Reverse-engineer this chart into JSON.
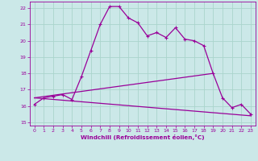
{
  "xlabel": "Windchill (Refroidissement éolien,°C)",
  "bg_color": "#cbe8e8",
  "line_color": "#990099",
  "grid_color": "#aad4cc",
  "ylim": [
    14.8,
    22.4
  ],
  "xlim": [
    -0.5,
    23.5
  ],
  "yticks": [
    15,
    16,
    17,
    18,
    19,
    20,
    21,
    22
  ],
  "xticks": [
    0,
    1,
    2,
    3,
    4,
    5,
    6,
    7,
    8,
    9,
    10,
    11,
    12,
    13,
    14,
    15,
    16,
    17,
    18,
    19,
    20,
    21,
    22,
    23
  ],
  "series1_x": [
    0,
    1,
    2,
    3,
    4,
    5,
    6,
    7,
    8,
    9,
    10,
    11,
    12,
    13,
    14,
    15,
    16,
    17,
    18,
    19,
    20,
    21,
    22,
    23
  ],
  "series1_y": [
    16.1,
    16.5,
    16.6,
    16.7,
    16.4,
    17.8,
    19.4,
    21.0,
    22.1,
    22.1,
    21.4,
    21.1,
    20.3,
    20.5,
    20.2,
    20.8,
    20.1,
    20.0,
    19.7,
    18.0,
    16.5,
    15.9,
    16.1,
    15.5
  ],
  "series2_x": [
    0,
    19
  ],
  "series2_y": [
    16.5,
    18.0
  ],
  "series3_x": [
    0,
    23
  ],
  "series3_y": [
    16.5,
    15.4
  ]
}
